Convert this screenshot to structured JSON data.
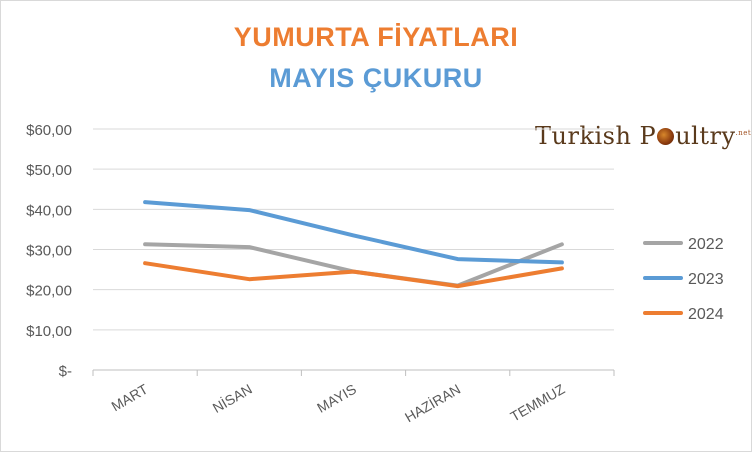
{
  "title_line1": "YUMURTA FİYATLARI",
  "title_line2": "MAYIS ÇUKURU",
  "title_colors": {
    "line1": "#ED7D31",
    "line2": "#5B9BD5"
  },
  "logo": {
    "text_before": "Turkish P",
    "text_after": "ultry",
    "suffix": ".net",
    "color": "#5a3a1c"
  },
  "chart_data": {
    "type": "line",
    "categories": [
      "MART",
      "NİSAN",
      "MAYIS",
      "HAZİRAN",
      "TEMMUZ"
    ],
    "series": [
      {
        "name": "2022",
        "values": [
          31.3,
          30.6,
          24.5,
          21.0,
          31.3
        ],
        "color": "#A5A5A5"
      },
      {
        "name": "2023",
        "values": [
          41.8,
          39.8,
          33.5,
          27.6,
          26.8
        ],
        "color": "#5B9BD5"
      },
      {
        "name": "2024",
        "values": [
          26.6,
          22.6,
          24.5,
          20.9,
          25.3
        ],
        "color": "#ED7D31"
      }
    ],
    "yticks": [
      0,
      10,
      20,
      30,
      40,
      50,
      60
    ],
    "ytick_labels": [
      "$-",
      "$10,00",
      "$20,00",
      "$30,00",
      "$40,00",
      "$50,00",
      "$60,00"
    ],
    "ylim": [
      0,
      60
    ],
    "grid": true,
    "legend_position": "right"
  }
}
